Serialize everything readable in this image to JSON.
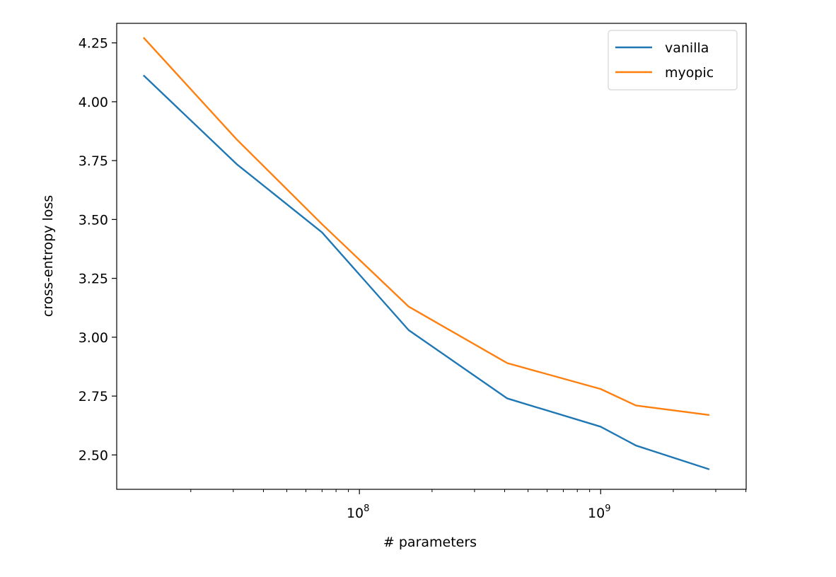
{
  "chart_data": {
    "type": "line",
    "title": "",
    "xlabel": "# parameters",
    "ylabel": "cross-entropy loss",
    "xscale": "log",
    "xlim": [
      9860000,
      4010000000
    ],
    "ylim": [
      2.354,
      4.333
    ],
    "x_tick_labels": [
      {
        "base": "10",
        "exp": "8",
        "value": 100000000
      },
      {
        "base": "10",
        "exp": "9",
        "value": 1000000000
      }
    ],
    "y_ticks": [
      2.5,
      2.75,
      3.0,
      3.25,
      3.5,
      3.75,
      4.0,
      4.25
    ],
    "y_tick_labels": [
      "2.50",
      "2.75",
      "3.00",
      "3.25",
      "3.50",
      "3.75",
      "4.00",
      "4.25"
    ],
    "grid": false,
    "legend_position": "top-right",
    "x": [
      12800000,
      31000000,
      70000000,
      160000000,
      410000000,
      1000000000,
      1400000000,
      2800000000
    ],
    "series": [
      {
        "name": "vanilla",
        "color": "#1f77b4",
        "values": [
          4.11,
          3.735,
          3.445,
          3.03,
          2.74,
          2.62,
          2.54,
          2.44
        ]
      },
      {
        "name": "myopic",
        "color": "#ff7f0e",
        "values": [
          4.27,
          3.84,
          3.48,
          3.13,
          2.89,
          2.78,
          2.71,
          2.67
        ]
      }
    ]
  }
}
